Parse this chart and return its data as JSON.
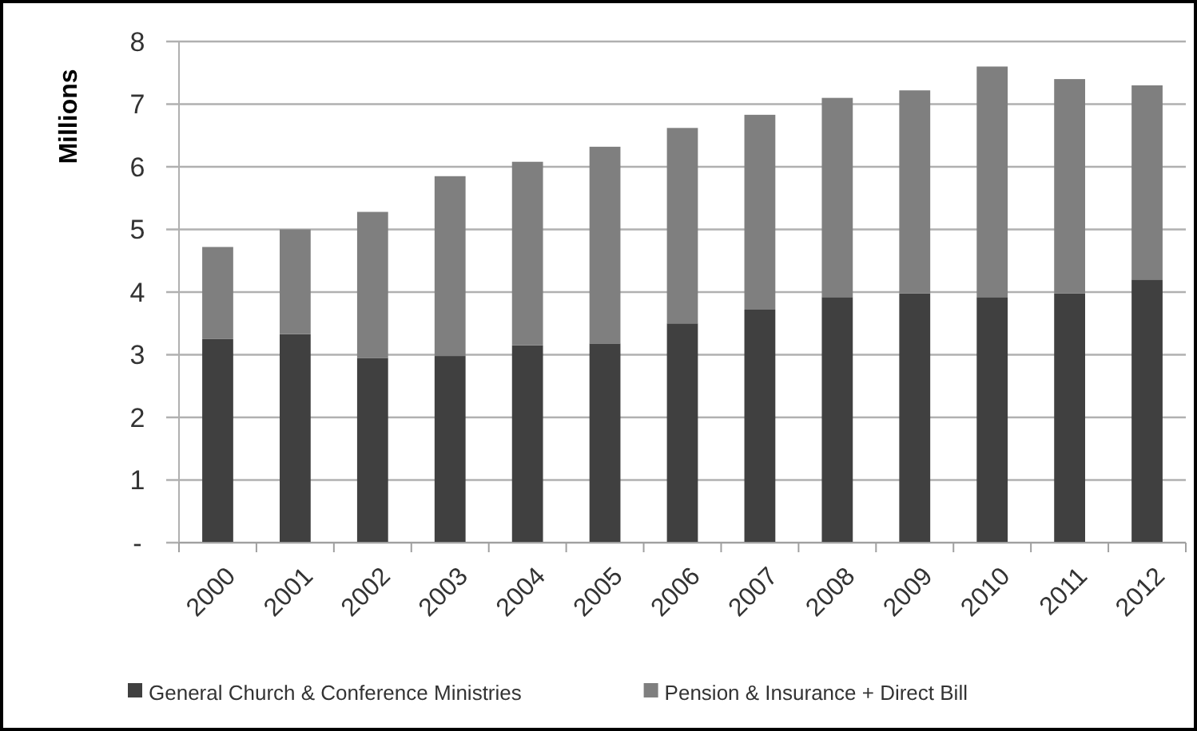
{
  "chart_data": {
    "type": "bar",
    "ylabel": "Millions",
    "stacked": true,
    "categories": [
      "2000",
      "2001",
      "2002",
      "2003",
      "2004",
      "2005",
      "2006",
      "2007",
      "2008",
      "2009",
      "2010",
      "2011",
      "2012"
    ],
    "series": [
      {
        "name": "General Church & Conference Ministries",
        "color": "#404040",
        "values": [
          3.25,
          3.33,
          2.95,
          2.98,
          3.15,
          3.18,
          3.5,
          3.72,
          3.92,
          3.98,
          3.92,
          3.98,
          4.2
        ]
      },
      {
        "name": "Pension & Insurance + Direct Bill",
        "color": "#7f7f7f",
        "values": [
          1.47,
          1.67,
          2.33,
          2.87,
          2.93,
          3.14,
          3.12,
          3.11,
          3.18,
          3.24,
          3.68,
          3.42,
          3.1
        ]
      }
    ],
    "ylim": [
      0,
      8
    ],
    "yticks": [
      {
        "value": 0,
        "label": "-"
      },
      1,
      2,
      3,
      4,
      5,
      6,
      7,
      8
    ],
    "grid": "y",
    "legend": "bottom"
  }
}
